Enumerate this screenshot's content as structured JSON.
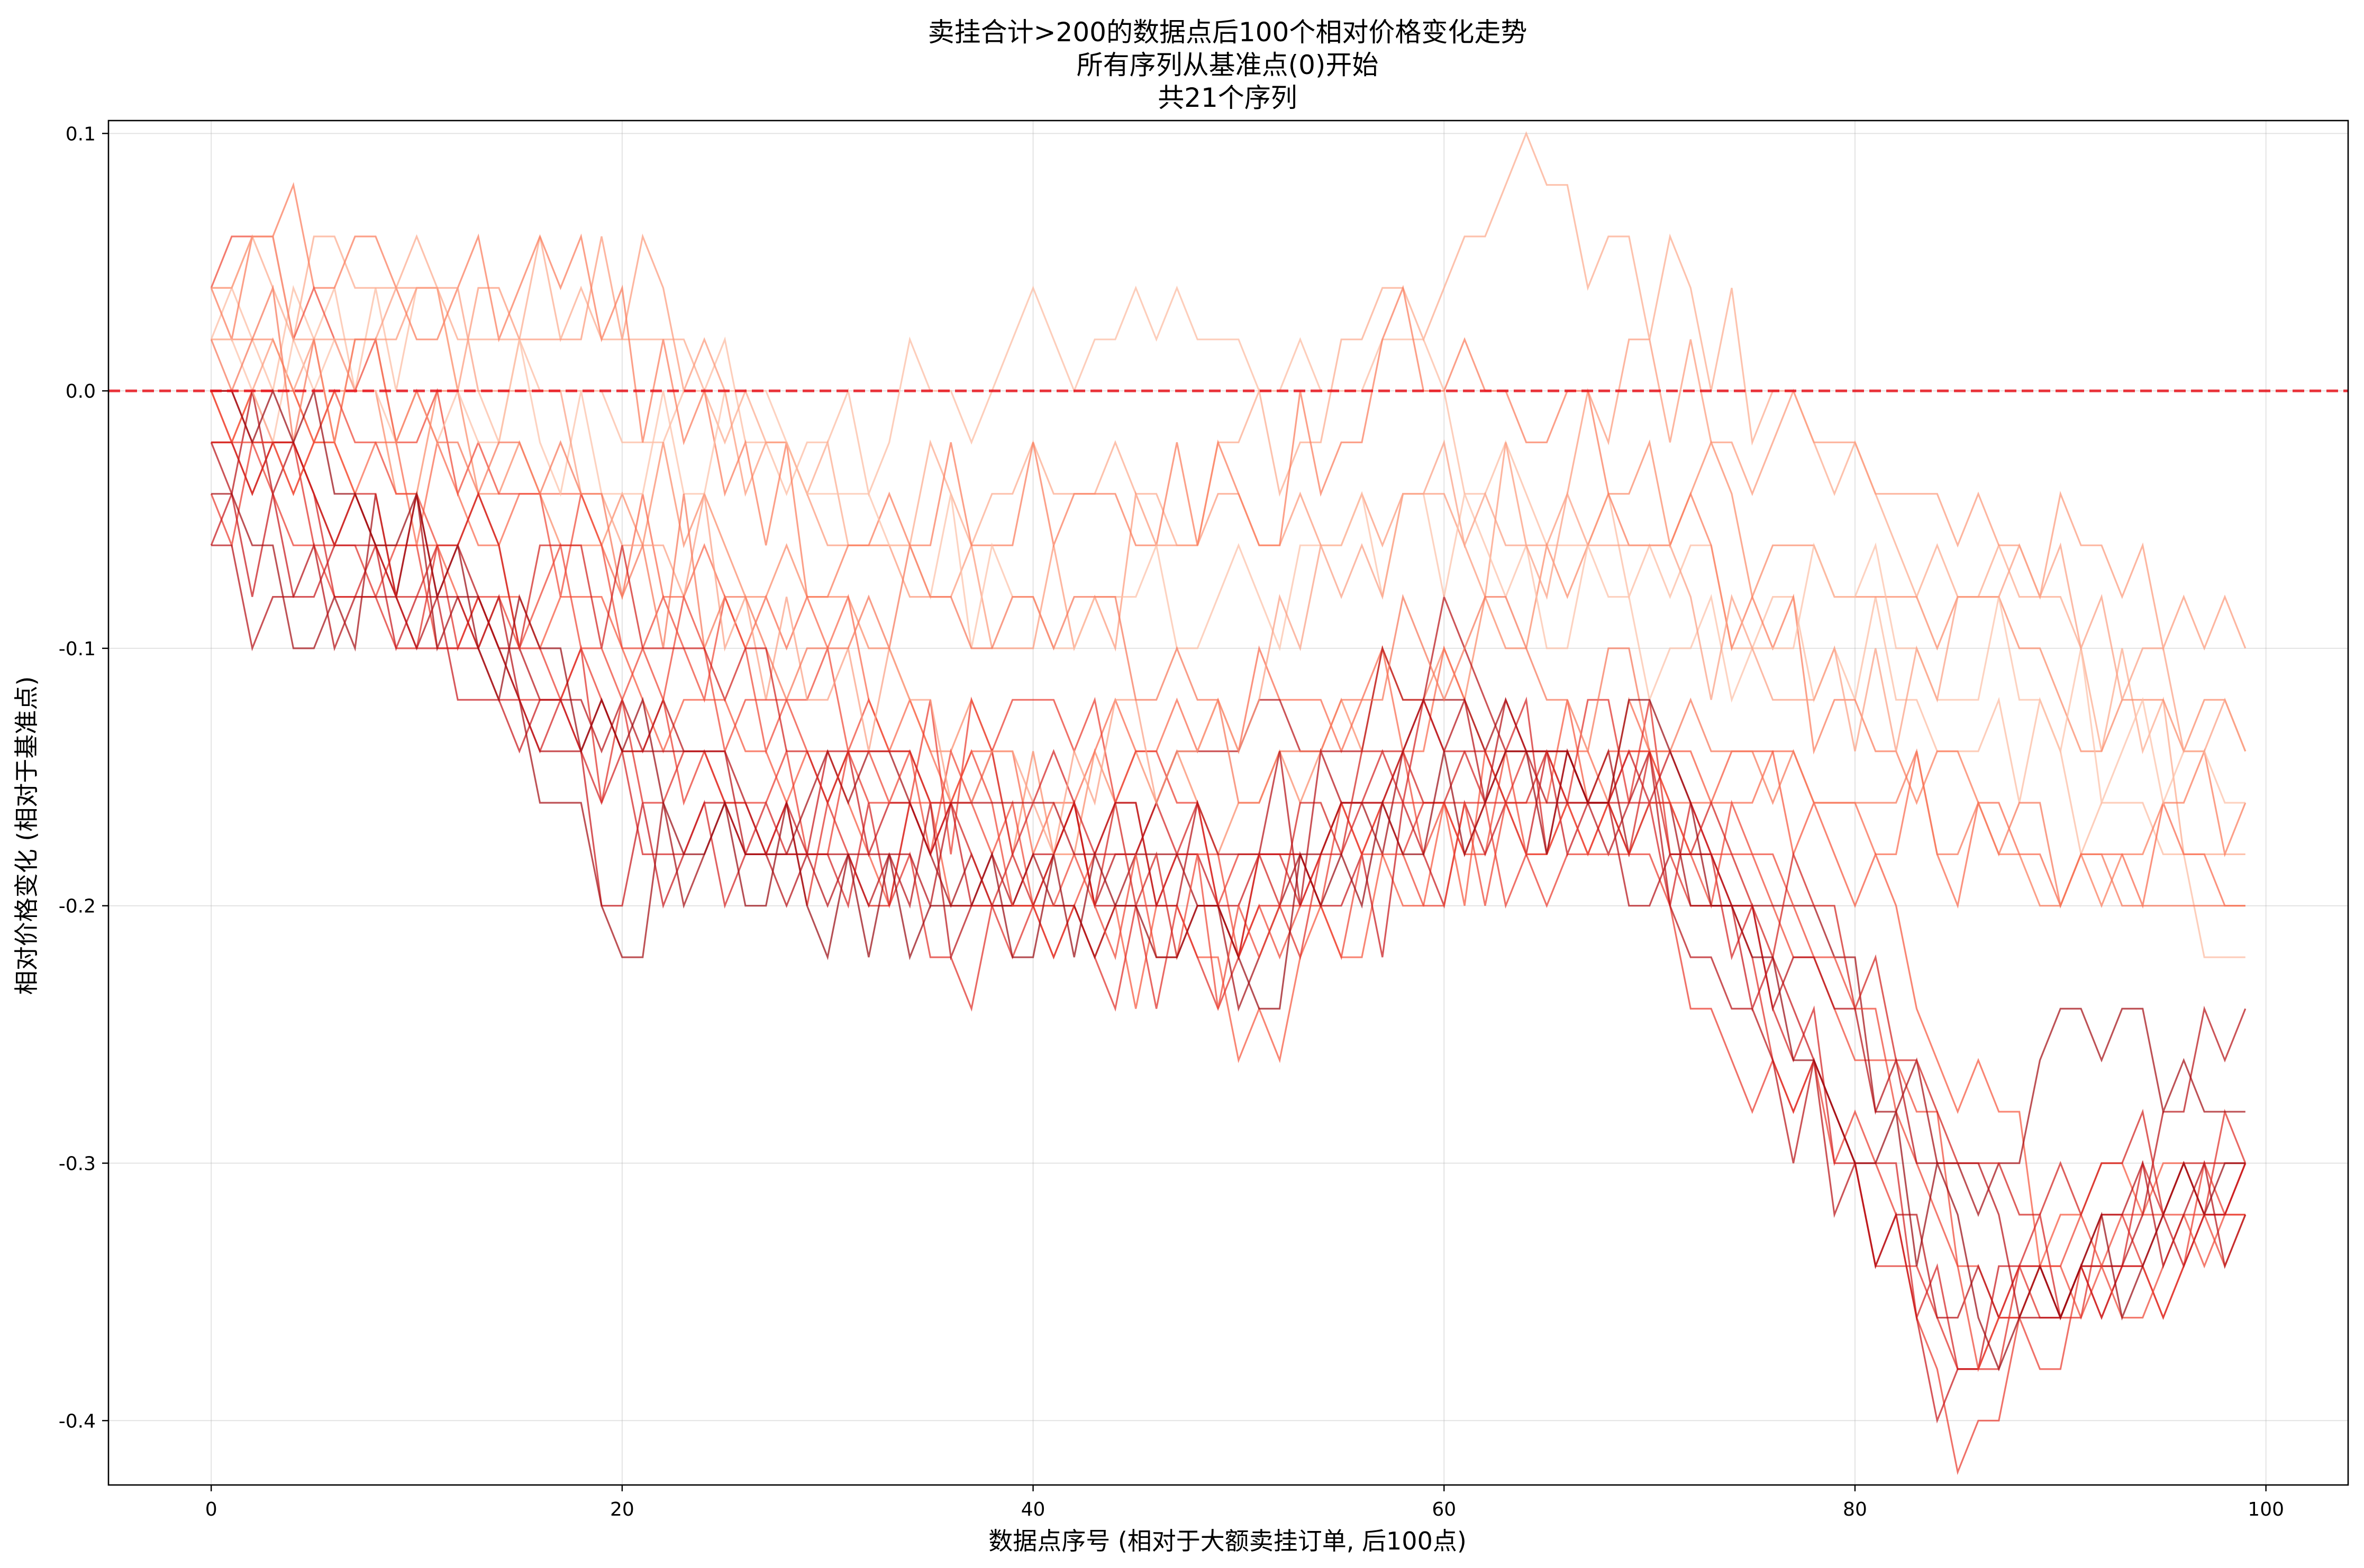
{
  "chart_data": {
    "type": "line",
    "title_lines": [
      "卖挂合计>200的数据点后100个相对价格变化走势",
      "所有序列从基准点(0)开始",
      "共21个序列"
    ],
    "xlabel": "数据点序号 (相对于大额卖挂订单, 后100点)",
    "ylabel": "相对价格变化 (相对于基准点)",
    "xlim": [
      -5,
      104
    ],
    "ylim": [
      -0.425,
      0.105
    ],
    "x_ticks": [
      0,
      20,
      40,
      60,
      80,
      100
    ],
    "x_tick_labels": [
      "0",
      "20",
      "40",
      "60",
      "80",
      "100"
    ],
    "y_ticks": [
      0.1,
      0.0,
      -0.1,
      -0.2,
      -0.3,
      -0.4
    ],
    "y_tick_labels": [
      "0.1",
      "0.0",
      "-0.1",
      "-0.2",
      "-0.3",
      "-0.4"
    ],
    "grid": true,
    "reference_line": {
      "y": 0.0,
      "style": "dashed",
      "color": "#e8121b"
    },
    "series_count": 21,
    "series_points_per_series": 100,
    "series_colors": [
      "#fcbba1",
      "#fcaa8d",
      "#fc9a7b",
      "#fb8b6a",
      "#fb7c5c",
      "#f96a4d",
      "#f6583e",
      "#f04a37",
      "#ea3b2f",
      "#e02f28",
      "#d42322",
      "#c7171c",
      "#b91318",
      "#a50f15",
      "#fcc1a8",
      "#fb9f84",
      "#f7775a",
      "#ee4636",
      "#d1221f",
      "#b51016",
      "#9a0c14"
    ],
    "series_anchors": [
      [
        [
          0,
          0.02
        ],
        [
          10,
          0.02
        ],
        [
          20,
          0.0
        ],
        [
          30,
          -0.02
        ],
        [
          40,
          0.02
        ],
        [
          50,
          0.02
        ],
        [
          60,
          0.0
        ],
        [
          70,
          -0.08
        ],
        [
          80,
          -0.1
        ],
        [
          90,
          -0.14
        ],
        [
          99,
          -0.22
        ]
      ],
      [
        [
          0,
          0.04
        ],
        [
          10,
          0.04
        ],
        [
          20,
          0.02
        ],
        [
          30,
          -0.04
        ],
        [
          40,
          -0.04
        ],
        [
          50,
          -0.04
        ],
        [
          60,
          0.06
        ],
        [
          64,
          0.08
        ],
        [
          70,
          0.04
        ],
        [
          80,
          -0.04
        ],
        [
          90,
          -0.1
        ],
        [
          99,
          -0.18
        ]
      ],
      [
        [
          0,
          0.0
        ],
        [
          10,
          0.02
        ],
        [
          20,
          0.04
        ],
        [
          30,
          -0.06
        ],
        [
          40,
          -0.1
        ],
        [
          50,
          -0.04
        ],
        [
          60,
          -0.06
        ],
        [
          70,
          0.0
        ],
        [
          80,
          -0.04
        ],
        [
          90,
          -0.06
        ],
        [
          99,
          -0.1
        ]
      ],
      [
        [
          0,
          0.02
        ],
        [
          10,
          -0.02
        ],
        [
          20,
          -0.04
        ],
        [
          30,
          -0.08
        ],
        [
          40,
          -0.16
        ],
        [
          50,
          -0.16
        ],
        [
          60,
          -0.12
        ],
        [
          70,
          -0.04
        ],
        [
          80,
          -0.06
        ],
        [
          90,
          -0.12
        ],
        [
          99,
          -0.14
        ]
      ],
      [
        [
          0,
          0.04
        ],
        [
          5,
          0.06
        ],
        [
          10,
          0.02
        ],
        [
          17,
          0.06
        ],
        [
          22,
          0.0
        ],
        [
          30,
          -0.06
        ],
        [
          40,
          -0.04
        ],
        [
          50,
          -0.04
        ],
        [
          60,
          0.02
        ],
        [
          70,
          -0.04
        ],
        [
          80,
          -0.14
        ],
        [
          90,
          -0.18
        ],
        [
          99,
          -0.16
        ]
      ],
      [
        [
          0,
          -0.02
        ],
        [
          10,
          -0.04
        ],
        [
          20,
          -0.06
        ],
        [
          30,
          -0.1
        ],
        [
          40,
          -0.16
        ],
        [
          50,
          -0.12
        ],
        [
          60,
          -0.12
        ],
        [
          70,
          -0.14
        ],
        [
          80,
          -0.16
        ],
        [
          90,
          -0.18
        ],
        [
          99,
          -0.2
        ]
      ],
      [
        [
          0,
          0.0
        ],
        [
          10,
          -0.06
        ],
        [
          20,
          -0.1
        ],
        [
          30,
          -0.16
        ],
        [
          40,
          -0.2
        ],
        [
          50,
          -0.24
        ],
        [
          60,
          -0.18
        ],
        [
          70,
          -0.12
        ],
        [
          80,
          -0.2
        ],
        [
          90,
          -0.32
        ],
        [
          99,
          -0.3
        ]
      ],
      [
        [
          0,
          0.04
        ],
        [
          3,
          0.06
        ],
        [
          10,
          -0.02
        ],
        [
          20,
          -0.08
        ],
        [
          30,
          -0.12
        ],
        [
          40,
          -0.18
        ],
        [
          50,
          -0.2
        ],
        [
          60,
          -0.16
        ],
        [
          70,
          -0.16
        ],
        [
          80,
          -0.24
        ],
        [
          88,
          -0.36
        ],
        [
          99,
          -0.32
        ]
      ],
      [
        [
          0,
          -0.04
        ],
        [
          10,
          -0.08
        ],
        [
          20,
          -0.12
        ],
        [
          30,
          -0.16
        ],
        [
          40,
          -0.14
        ],
        [
          50,
          -0.18
        ],
        [
          60,
          -0.16
        ],
        [
          70,
          -0.2
        ],
        [
          80,
          -0.3
        ],
        [
          85,
          -0.4
        ],
        [
          90,
          -0.36
        ],
        [
          99,
          -0.32
        ]
      ],
      [
        [
          0,
          -0.02
        ],
        [
          10,
          -0.08
        ],
        [
          20,
          -0.14
        ],
        [
          30,
          -0.18
        ],
        [
          40,
          -0.22
        ],
        [
          50,
          -0.22
        ],
        [
          60,
          -0.16
        ],
        [
          70,
          -0.14
        ],
        [
          80,
          -0.32
        ],
        [
          87,
          -0.38
        ],
        [
          99,
          -0.3
        ]
      ],
      [
        [
          0,
          0.0
        ],
        [
          10,
          -0.1
        ],
        [
          20,
          -0.16
        ],
        [
          30,
          -0.18
        ],
        [
          40,
          -0.16
        ],
        [
          50,
          -0.2
        ],
        [
          60,
          -0.14
        ],
        [
          70,
          -0.16
        ],
        [
          80,
          -0.28
        ],
        [
          85,
          -0.36
        ],
        [
          99,
          -0.3
        ]
      ],
      [
        [
          0,
          -0.06
        ],
        [
          10,
          -0.08
        ],
        [
          20,
          -0.18
        ],
        [
          30,
          -0.16
        ],
        [
          40,
          -0.18
        ],
        [
          50,
          -0.2
        ],
        [
          60,
          -0.18
        ],
        [
          70,
          -0.14
        ],
        [
          80,
          -0.3
        ],
        [
          84,
          -0.38
        ],
        [
          99,
          -0.3
        ]
      ],
      [
        [
          0,
          -0.02
        ],
        [
          10,
          -0.06
        ],
        [
          20,
          -0.12
        ],
        [
          30,
          -0.18
        ],
        [
          40,
          -0.2
        ],
        [
          50,
          -0.14
        ],
        [
          60,
          -0.1
        ],
        [
          70,
          -0.16
        ],
        [
          80,
          -0.32
        ],
        [
          88,
          -0.38
        ],
        [
          99,
          -0.24
        ]
      ],
      [
        [
          0,
          -0.04
        ],
        [
          5,
          -0.08
        ],
        [
          10,
          -0.06
        ],
        [
          20,
          -0.2
        ],
        [
          30,
          -0.16
        ],
        [
          40,
          -0.18
        ],
        [
          50,
          -0.22
        ],
        [
          60,
          -0.12
        ],
        [
          70,
          -0.16
        ],
        [
          80,
          -0.24
        ],
        [
          87,
          -0.32
        ],
        [
          90,
          -0.26
        ],
        [
          99,
          -0.28
        ]
      ],
      [
        [
          0,
          0.02
        ],
        [
          10,
          0.0
        ],
        [
          20,
          -0.02
        ],
        [
          30,
          -0.02
        ],
        [
          40,
          -0.1
        ],
        [
          50,
          -0.08
        ],
        [
          60,
          -0.06
        ],
        [
          70,
          -0.1
        ],
        [
          80,
          -0.08
        ],
        [
          90,
          -0.12
        ],
        [
          99,
          -0.16
        ]
      ],
      [
        [
          0,
          0.04
        ],
        [
          10,
          0.04
        ],
        [
          20,
          -0.04
        ],
        [
          30,
          -0.12
        ],
        [
          40,
          -0.16
        ],
        [
          50,
          -0.12
        ],
        [
          60,
          -0.04
        ],
        [
          70,
          -0.08
        ],
        [
          80,
          -0.12
        ],
        [
          90,
          -0.08
        ],
        [
          99,
          -0.14
        ]
      ],
      [
        [
          0,
          0.02
        ],
        [
          10,
          0.0
        ],
        [
          20,
          -0.06
        ],
        [
          30,
          -0.1
        ],
        [
          40,
          -0.08
        ],
        [
          50,
          -0.14
        ],
        [
          60,
          -0.1
        ],
        [
          70,
          -0.12
        ],
        [
          80,
          -0.16
        ],
        [
          90,
          -0.18
        ],
        [
          99,
          -0.2
        ]
      ],
      [
        [
          0,
          0.0
        ],
        [
          10,
          -0.04
        ],
        [
          20,
          -0.1
        ],
        [
          30,
          -0.14
        ],
        [
          40,
          -0.18
        ],
        [
          50,
          -0.22
        ],
        [
          60,
          -0.18
        ],
        [
          70,
          -0.16
        ],
        [
          80,
          -0.22
        ],
        [
          86,
          -0.36
        ],
        [
          99,
          -0.32
        ]
      ],
      [
        [
          0,
          -0.02
        ],
        [
          10,
          -0.06
        ],
        [
          20,
          -0.08
        ],
        [
          30,
          -0.14
        ],
        [
          40,
          -0.18
        ],
        [
          50,
          -0.2
        ],
        [
          60,
          -0.14
        ],
        [
          70,
          -0.16
        ],
        [
          80,
          -0.22
        ],
        [
          87,
          -0.32
        ],
        [
          99,
          -0.3
        ]
      ],
      [
        [
          0,
          -0.06
        ],
        [
          10,
          -0.1
        ],
        [
          20,
          -0.12
        ],
        [
          30,
          -0.2
        ],
        [
          40,
          -0.16
        ],
        [
          50,
          -0.18
        ],
        [
          60,
          -0.14
        ],
        [
          70,
          -0.18
        ],
        [
          80,
          -0.24
        ],
        [
          88,
          -0.34
        ],
        [
          99,
          -0.32
        ]
      ],
      [
        [
          0,
          0.0
        ],
        [
          10,
          -0.06
        ],
        [
          20,
          -0.14
        ],
        [
          30,
          -0.2
        ],
        [
          40,
          -0.2
        ],
        [
          50,
          -0.22
        ],
        [
          60,
          -0.16
        ],
        [
          70,
          -0.14
        ],
        [
          80,
          -0.28
        ],
        [
          87,
          -0.36
        ],
        [
          99,
          -0.3
        ]
      ]
    ]
  }
}
